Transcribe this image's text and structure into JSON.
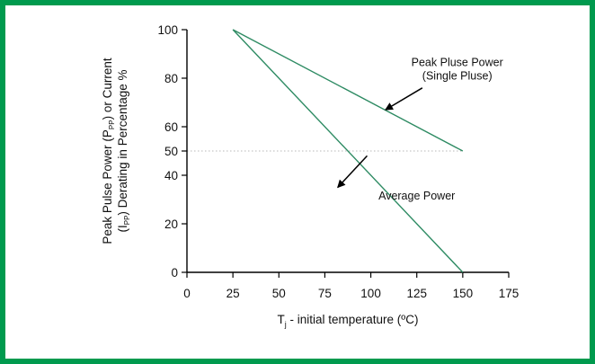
{
  "colors": {
    "frame": "#009a4e",
    "series": "#2e8b63",
    "axis": "#000000",
    "reference": "#b8b8b8"
  },
  "chart_data": {
    "type": "line",
    "xlabel": {
      "main": "T",
      "sub": "j",
      "rest": " - initial temperature (ºC)"
    },
    "ylabel": {
      "line1": {
        "pre": "Peak Pulse Power (P",
        "sub": "PP",
        "post": ") or Current"
      },
      "line2": {
        "pre": "(I",
        "sub": "PP",
        "post": ") Derating in Percentage %"
      }
    },
    "xlim": [
      0,
      175
    ],
    "ylim": [
      0,
      100
    ],
    "x_ticks": [
      0,
      25,
      50,
      75,
      100,
      125,
      150,
      175
    ],
    "y_ticks": [
      0,
      20,
      40,
      50,
      60,
      80,
      100
    ],
    "reference_line": {
      "y": 50,
      "style": "dotted"
    },
    "series": [
      {
        "x": [
          25,
          150
        ],
        "y": [
          100,
          50
        ]
      },
      {
        "x": [
          25,
          150
        ],
        "y": [
          100,
          0
        ]
      }
    ],
    "annotations": [
      {
        "lines": [
          "Peak Pluse Power",
          "(Single Pluse)"
        ],
        "text_at": [
          147,
          85
        ],
        "arrow_from": [
          128,
          76
        ],
        "arrow_to": [
          108,
          67
        ]
      },
      {
        "lines": [
          "Average Power"
        ],
        "text_at": [
          125,
          30
        ],
        "arrow_from": [
          98,
          48
        ],
        "arrow_to": [
          82,
          35
        ]
      }
    ]
  }
}
